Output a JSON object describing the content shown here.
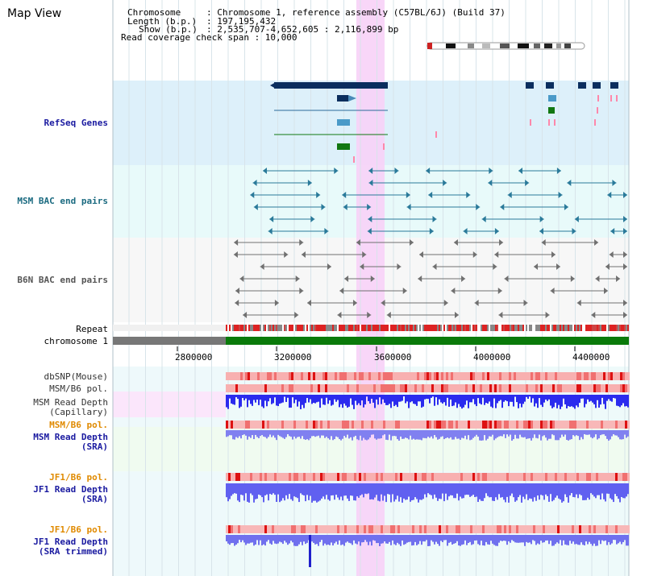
{
  "title": "Map View",
  "header": {
    "line1_label": "Chromosome",
    "line1_value": ": Chromosome 1, reference assembly (C57BL/6J) (Build 37)",
    "line2_label": "Length (b.p.)",
    "line2_value": ": 197,195,432",
    "line3_label": "Show (b.p.)",
    "line3_value": ": 2,535,707-4,652,605 : 2,116,899 bp",
    "line4": "Read coverage check span : 10,000"
  },
  "tracks": {
    "refseq": "RefSeq Genes",
    "msm_bac": "MSM BAC end pairs",
    "b6n_bac": "B6N BAC end pairs",
    "repeat": "Repeat",
    "chromosome": "chromosome 1",
    "dbsnp": "dbSNP(Mouse)",
    "msm_b6_pol_1": "MSM/B6 pol.",
    "msm_read_depth_cap_1": "MSM Read Depth",
    "msm_read_depth_cap_2": "(Capillary)",
    "msm_b6_pol_2": "MSM/B6 pol.",
    "msm_read_depth_sra_1": "MSM Read Depth",
    "msm_read_depth_sra_2": "(SRA)",
    "jf1_b6_pol_1": "JF1/B6 pol.",
    "jf1_read_depth_1": "JF1 Read Depth",
    "jf1_read_depth_2": "(SRA)",
    "jf1_b6_pol_2": "JF1/B6 pol.",
    "jf1_read_depth_trim_1": "JF1 Read Depth",
    "jf1_read_depth_trim_2": "(SRA trimmed)"
  },
  "axis": {
    "ticks": [
      "2800000",
      "3200000",
      "3600000",
      "4000000",
      "4400000"
    ]
  },
  "colors": {
    "refseq_bg": "#ddf0fa",
    "msm_bg": "#e8fafa",
    "b6n_bg": "#f7f7f7",
    "highlight": "#f7d2f7",
    "chromosome_bar": "#0a7a0a",
    "chromosome_gray": "#777777",
    "label_blue": "#1a1aa0",
    "label_teal": "#1a6a80",
    "label_gray": "#555555",
    "label_orange": "#e08a00"
  }
}
